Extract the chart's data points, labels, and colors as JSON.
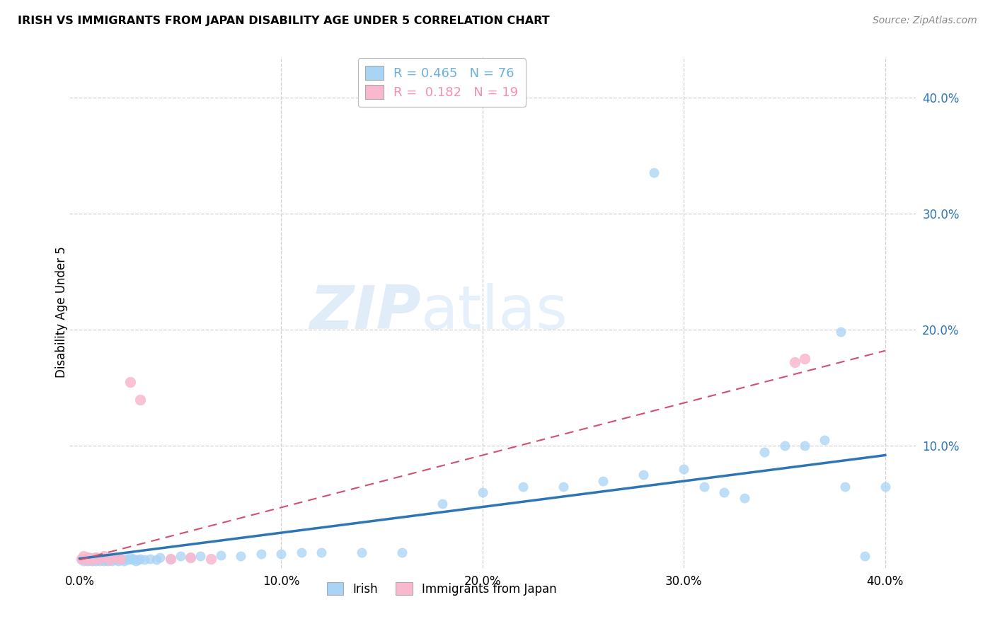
{
  "title": "IRISH VS IMMIGRANTS FROM JAPAN DISABILITY AGE UNDER 5 CORRELATION CHART",
  "source": "Source: ZipAtlas.com",
  "ylabel": "Disability Age Under 5",
  "x_tick_labels": [
    "0.0%",
    "10.0%",
    "20.0%",
    "30.0%",
    "40.0%"
  ],
  "x_tick_values": [
    0.0,
    0.1,
    0.2,
    0.3,
    0.4
  ],
  "y_tick_labels": [
    "10.0%",
    "20.0%",
    "30.0%",
    "40.0%"
  ],
  "y_tick_values": [
    0.1,
    0.2,
    0.3,
    0.4
  ],
  "xlim": [
    -0.005,
    0.415
  ],
  "ylim": [
    -0.005,
    0.435
  ],
  "legend_r_entries": [
    {
      "label_r": "R = 0.465",
      "label_n": "N = 76",
      "color": "#6cb0e0"
    },
    {
      "label_r": "R =  0.182",
      "label_n": "N = 19",
      "color": "#f48fb1"
    }
  ],
  "legend_bottom": [
    "Irish",
    "Immigrants from Japan"
  ],
  "watermark_zip": "ZIP",
  "watermark_atlas": "atlas",
  "blue_scatter_color": "#a8d4f5",
  "pink_scatter_color": "#f9b8ce",
  "trendline_blue_color": "#2e75b6",
  "trendline_pink_color": "#d05070",
  "grid_color": "#d0d0d0",
  "background_color": "#ffffff",
  "irish_x": [
    0.001,
    0.002,
    0.003,
    0.003,
    0.004,
    0.004,
    0.005,
    0.005,
    0.006,
    0.006,
    0.007,
    0.007,
    0.008,
    0.008,
    0.009,
    0.009,
    0.01,
    0.01,
    0.011,
    0.011,
    0.012,
    0.012,
    0.013,
    0.014,
    0.015,
    0.015,
    0.016,
    0.017,
    0.018,
    0.019,
    0.02,
    0.021,
    0.022,
    0.023,
    0.024,
    0.025,
    0.026,
    0.027,
    0.028,
    0.029,
    0.03,
    0.032,
    0.035,
    0.038,
    0.04,
    0.045,
    0.05,
    0.055,
    0.06,
    0.07,
    0.08,
    0.09,
    0.1,
    0.11,
    0.12,
    0.14,
    0.16,
    0.18,
    0.2,
    0.22,
    0.24,
    0.26,
    0.28,
    0.3,
    0.31,
    0.32,
    0.33,
    0.34,
    0.35,
    0.36,
    0.37,
    0.38,
    0.39,
    0.4,
    0.285,
    0.378
  ],
  "irish_y": [
    0.002,
    0.001,
    0.003,
    0.002,
    0.001,
    0.003,
    0.002,
    0.004,
    0.001,
    0.003,
    0.002,
    0.004,
    0.001,
    0.003,
    0.002,
    0.004,
    0.001,
    0.003,
    0.002,
    0.004,
    0.001,
    0.003,
    0.002,
    0.001,
    0.003,
    0.002,
    0.001,
    0.003,
    0.002,
    0.001,
    0.003,
    0.002,
    0.001,
    0.003,
    0.002,
    0.004,
    0.002,
    0.003,
    0.001,
    0.002,
    0.003,
    0.002,
    0.003,
    0.002,
    0.004,
    0.003,
    0.005,
    0.004,
    0.005,
    0.006,
    0.005,
    0.007,
    0.007,
    0.008,
    0.008,
    0.008,
    0.008,
    0.05,
    0.06,
    0.065,
    0.065,
    0.07,
    0.075,
    0.08,
    0.065,
    0.06,
    0.055,
    0.095,
    0.1,
    0.1,
    0.105,
    0.065,
    0.005,
    0.065,
    0.335,
    0.198
  ],
  "japan_x": [
    0.001,
    0.002,
    0.003,
    0.004,
    0.005,
    0.006,
    0.008,
    0.01,
    0.012,
    0.015,
    0.018,
    0.02,
    0.025,
    0.03,
    0.045,
    0.055,
    0.065,
    0.355,
    0.36
  ],
  "japan_y": [
    0.003,
    0.005,
    0.002,
    0.004,
    0.003,
    0.002,
    0.004,
    0.003,
    0.005,
    0.002,
    0.004,
    0.003,
    0.155,
    0.14,
    0.003,
    0.004,
    0.003,
    0.172,
    0.175
  ],
  "irish_trend_x": [
    0.0,
    0.4
  ],
  "irish_trend_y": [
    0.003,
    0.092
  ],
  "japan_trend_x": [
    0.0,
    0.4
  ],
  "japan_trend_y": [
    0.002,
    0.182
  ]
}
